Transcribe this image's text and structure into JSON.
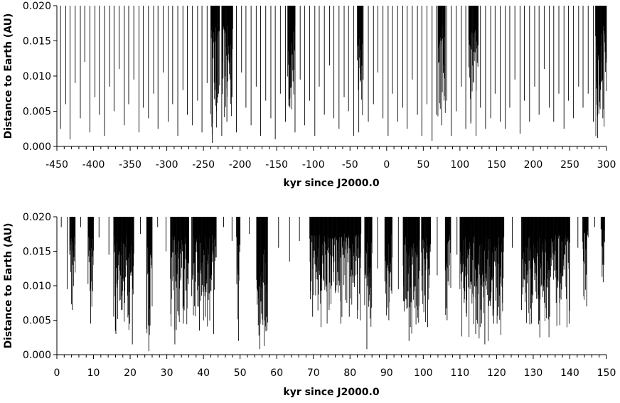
{
  "chart_data": [
    {
      "type": "bar",
      "ylabel": "Distance to Earth (AU)",
      "xlabel": "kyr since J2000.0",
      "xlim": [
        -450,
        300
      ],
      "ylim": [
        0.0,
        0.02
      ],
      "xticks": [
        -450,
        -400,
        -350,
        -300,
        -250,
        -200,
        -150,
        -100,
        -50,
        0,
        50,
        100,
        150,
        200,
        250,
        300
      ],
      "xtick_labels": [
        "-450",
        "-400",
        "-350",
        "-300",
        "-250",
        "-200",
        "-150",
        "-100",
        "-50",
        "0",
        "50",
        "100",
        "150",
        "200",
        "250",
        "300"
      ],
      "xminor_step": 10,
      "yticks": [
        0.0,
        0.005,
        0.01,
        0.015,
        0.02
      ],
      "ytick_labels": [
        "0.000",
        "0.005",
        "0.010",
        "0.015",
        "0.020"
      ],
      "grid": false,
      "dense_clusters": [
        {
          "start": -240,
          "end": -228,
          "min_distance": 0.0005
        },
        {
          "start": -225,
          "end": -210,
          "min_distance": 0.0015
        },
        {
          "start": -135,
          "end": -125,
          "min_distance": 0.002
        },
        {
          "start": -40,
          "end": -33,
          "min_distance": 0.002
        },
        {
          "start": 70,
          "end": 80,
          "min_distance": 0.003
        },
        {
          "start": 112,
          "end": 125,
          "min_distance": 0.0015
        },
        {
          "start": 285,
          "end": 300,
          "min_distance": 0.001
        }
      ],
      "x": [
        -445,
        -438,
        -432,
        -425,
        -418,
        -412,
        -405,
        -398,
        -392,
        -385,
        -378,
        -372,
        -365,
        -358,
        -352,
        -345,
        -338,
        -332,
        -325,
        -318,
        -312,
        -305,
        -298,
        -292,
        -285,
        -278,
        -272,
        -265,
        -258,
        -252,
        -245,
        -238,
        -232,
        -225,
        -218,
        -212,
        -205,
        -198,
        -192,
        -185,
        -178,
        -172,
        -165,
        -158,
        -152,
        -145,
        -138,
        -132,
        -125,
        -118,
        -112,
        -105,
        -98,
        -92,
        -85,
        -78,
        -72,
        -65,
        -58,
        -52,
        -45,
        -38,
        -32,
        -25,
        -18,
        -12,
        -5,
        2,
        8,
        15,
        22,
        28,
        35,
        42,
        48,
        55,
        62,
        68,
        75,
        82,
        88,
        95,
        102,
        108,
        115,
        122,
        128,
        135,
        142,
        148,
        155,
        162,
        168,
        175,
        182,
        188,
        195,
        202,
        208,
        215,
        222,
        228,
        235,
        242,
        248,
        255,
        262,
        268,
        275,
        282,
        288,
        295
      ],
      "values": [
        0.0025,
        0.006,
        0.001,
        0.009,
        0.004,
        0.012,
        0.002,
        0.007,
        0.0045,
        0.0015,
        0.0085,
        0.005,
        0.011,
        0.003,
        0.006,
        0.0095,
        0.002,
        0.0055,
        0.004,
        0.0075,
        0.0025,
        0.0105,
        0.0035,
        0.006,
        0.0015,
        0.008,
        0.0045,
        0.003,
        0.0065,
        0.002,
        0.009,
        0.0005,
        0.005,
        0.0015,
        0.0035,
        0.007,
        0.002,
        0.0105,
        0.0055,
        0.003,
        0.0085,
        0.0015,
        0.0065,
        0.004,
        0.001,
        0.0075,
        0.0035,
        0.0055,
        0.002,
        0.0095,
        0.003,
        0.0065,
        0.0015,
        0.0085,
        0.0045,
        0.0115,
        0.004,
        0.0025,
        0.007,
        0.005,
        0.0015,
        0.002,
        0.0095,
        0.0035,
        0.006,
        0.0105,
        0.004,
        0.0015,
        0.0075,
        0.0035,
        0.0055,
        0.0025,
        0.0095,
        0.0045,
        0.0015,
        0.006,
        0.0008,
        0.0045,
        0.003,
        0.0065,
        0.0015,
        0.005,
        0.0085,
        0.0025,
        0.0035,
        0.0015,
        0.0055,
        0.0025,
        0.004,
        0.0075,
        0.0035,
        0.0025,
        0.0055,
        0.0095,
        0.0018,
        0.0065,
        0.0035,
        0.0085,
        0.0045,
        0.011,
        0.0055,
        0.0035,
        0.0075,
        0.0025,
        0.0065,
        0.004,
        0.0085,
        0.0055,
        0.0075,
        0.0035,
        0.0012,
        0.004
      ]
    },
    {
      "type": "bar",
      "ylabel": "Distance to Earth (AU)",
      "xlabel": "kyr since J2000.0",
      "xlim": [
        0,
        150
      ],
      "ylim": [
        0.0,
        0.02
      ],
      "xticks": [
        0,
        10,
        20,
        30,
        40,
        50,
        60,
        70,
        80,
        90,
        100,
        110,
        120,
        130,
        140,
        150
      ],
      "xtick_labels": [
        "0",
        "10",
        "20",
        "30",
        "40",
        "50",
        "60",
        "70",
        "80",
        "90",
        "100",
        "110",
        "120",
        "130",
        "140",
        "150"
      ],
      "xminor_step": 2,
      "yticks": [
        0.0,
        0.005,
        0.01,
        0.015,
        0.02
      ],
      "ytick_labels": [
        "0.000",
        "0.005",
        "0.010",
        "0.015",
        "0.020"
      ],
      "grid": false,
      "dense_clusters": [
        {
          "start": 3.5,
          "end": 5,
          "min_distance": 0.006
        },
        {
          "start": 8.5,
          "end": 10,
          "min_distance": 0.0045
        },
        {
          "start": 15.5,
          "end": 21,
          "min_distance": 0.003
        },
        {
          "start": 24.5,
          "end": 26,
          "min_distance": 0.0005
        },
        {
          "start": 31,
          "end": 36,
          "min_distance": 0.0015
        },
        {
          "start": 37,
          "end": 43.5,
          "min_distance": 0.003
        },
        {
          "start": 49,
          "end": 50,
          "min_distance": 0.002
        },
        {
          "start": 54.5,
          "end": 57.5,
          "min_distance": 0.0008
        },
        {
          "start": 69,
          "end": 76,
          "min_distance": 0.004
        },
        {
          "start": 76,
          "end": 83,
          "min_distance": 0.0045
        },
        {
          "start": 84,
          "end": 86,
          "min_distance": 0.0008
        },
        {
          "start": 89.5,
          "end": 91.5,
          "min_distance": 0.005
        },
        {
          "start": 94.5,
          "end": 99,
          "min_distance": 0.002
        },
        {
          "start": 99.5,
          "end": 102,
          "min_distance": 0.004
        },
        {
          "start": 106,
          "end": 107.5,
          "min_distance": 0.005
        },
        {
          "start": 110,
          "end": 122,
          "min_distance": 0.0015
        },
        {
          "start": 127,
          "end": 140,
          "min_distance": 0.0025
        },
        {
          "start": 143.5,
          "end": 145,
          "min_distance": 0.007
        },
        {
          "start": 148.5,
          "end": 149.5,
          "min_distance": 0.0105
        }
      ],
      "x": [
        1.2,
        2.8,
        4.2,
        6.5,
        9.2,
        11.5,
        14.2,
        16.1,
        18.5,
        20.6,
        22.8,
        25.1,
        27.5,
        29.8,
        32.2,
        34.5,
        36.8,
        38.9,
        40.5,
        42.8,
        45.5,
        47.8,
        49.6,
        52.5,
        55.4,
        57.2,
        60.5,
        63.5,
        66.2,
        69.8,
        72.1,
        74.3,
        77.5,
        79.8,
        82.1,
        84.6,
        87.5,
        90.6,
        93.2,
        96.1,
        98.5,
        101.2,
        103.8,
        106.5,
        109.2,
        111.8,
        114.3,
        116.8,
        119.2,
        121.6,
        124.3,
        126.8,
        129.5,
        131.8,
        134.5,
        137.2,
        139.8,
        142.2,
        144.6,
        146.8,
        149.1
      ],
      "values": [
        0.0185,
        0.0095,
        0.0065,
        0.0185,
        0.0045,
        0.017,
        0.0145,
        0.003,
        0.0075,
        0.0015,
        0.0175,
        0.0005,
        0.0185,
        0.015,
        0.0015,
        0.0045,
        0.0085,
        0.0035,
        0.0055,
        0.003,
        0.0185,
        0.0165,
        0.002,
        0.0175,
        0.0008,
        0.0055,
        0.0155,
        0.0135,
        0.0165,
        0.0055,
        0.004,
        0.0065,
        0.0045,
        0.0055,
        0.0065,
        0.0008,
        0.0125,
        0.005,
        0.0095,
        0.002,
        0.0065,
        0.004,
        0.0115,
        0.005,
        0.0145,
        0.0055,
        0.003,
        0.0015,
        0.0045,
        0.0075,
        0.0155,
        0.0065,
        0.0045,
        0.0025,
        0.0055,
        0.0075,
        0.0045,
        0.0155,
        0.007,
        0.0185,
        0.0105
      ]
    }
  ]
}
